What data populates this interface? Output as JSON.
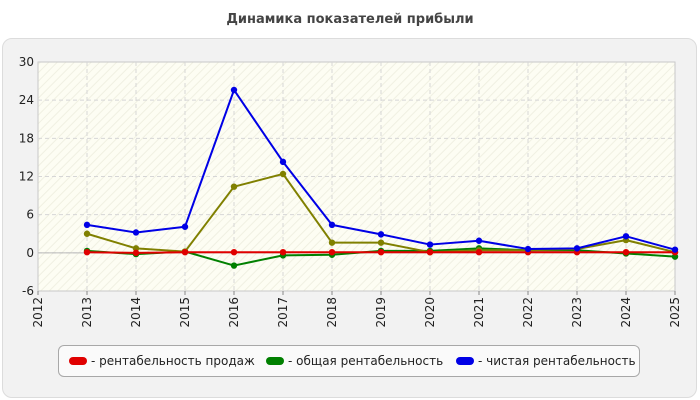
{
  "chart_data": {
    "type": "line",
    "title": "Динамика показателей прибыли",
    "x_ticks": [
      "2012",
      "2013",
      "2014",
      "2015",
      "2016",
      "2017",
      "2018",
      "2019",
      "2020",
      "2021",
      "2022",
      "2023",
      "2024",
      "2025"
    ],
    "x": [
      "2013",
      "2014",
      "2015",
      "2016",
      "2017",
      "2018",
      "2019",
      "2020",
      "2021",
      "2022",
      "2023",
      "2024",
      "2025"
    ],
    "ylim": [
      -6,
      30
    ],
    "y_ticks": [
      -6,
      0,
      6,
      12,
      18,
      24,
      30
    ],
    "grid": true,
    "legend_position": "bottom",
    "series": [
      {
        "name": "- рентабельность продаж",
        "color": "#e00000",
        "values": [
          0.1,
          0.0,
          0.1,
          0.1,
          0.1,
          0.1,
          0.1,
          0.1,
          0.1,
          0.1,
          0.1,
          0.1,
          0.1
        ]
      },
      {
        "name": "- общая рентабельность",
        "color": "#008000",
        "values": [
          0.3,
          -0.2,
          0.2,
          -2.0,
          -0.4,
          -0.3,
          0.3,
          0.3,
          0.7,
          0.4,
          0.4,
          -0.1,
          -0.6
        ]
      },
      {
        "name": "- чистая рентабельность",
        "color": "#0000e6",
        "values": [
          4.4,
          3.2,
          4.1,
          25.6,
          14.3,
          4.4,
          2.9,
          1.3,
          1.9,
          0.6,
          0.7,
          2.6,
          0.5
        ]
      },
      {
        "name": "",
        "color": "#808000",
        "values": [
          3.0,
          0.7,
          0.2,
          10.4,
          12.4,
          1.6,
          1.6,
          0.1,
          0.4,
          0.4,
          0.6,
          2.0,
          0.1
        ]
      }
    ]
  }
}
